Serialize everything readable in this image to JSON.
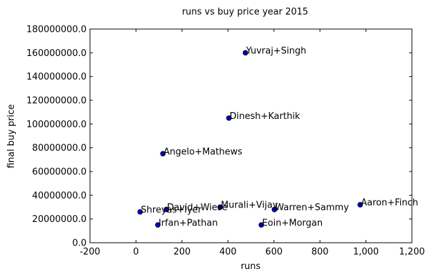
{
  "chart_data": {
    "type": "scatter",
    "title": "runs vs buy price year 2015",
    "xlabel": "runs",
    "ylabel": "final buy price",
    "xlim": [
      -200,
      1200
    ],
    "ylim": [
      0,
      180000000
    ],
    "xticks": [
      -200,
      0,
      200,
      400,
      600,
      800,
      1000,
      1200
    ],
    "xtick_labels": [
      "-200",
      "0",
      "200",
      "400",
      "600",
      "800",
      "1,000",
      "1,200"
    ],
    "yticks": [
      0,
      20000000,
      40000000,
      60000000,
      80000000,
      100000000,
      120000000,
      140000000,
      160000000,
      180000000
    ],
    "ytick_labels": [
      "0.0",
      "20000000.0",
      "40000000.0",
      "60000000.0",
      "80000000.0",
      "100000000.0",
      "120000000.0",
      "140000000.0",
      "160000000.0",
      "180000000.0"
    ],
    "grid": false,
    "marker_color": "#0000cc",
    "points": [
      {
        "label": "Yuvraj+Singh",
        "x": 476,
        "y": 160000000
      },
      {
        "label": "Dinesh+Karthik",
        "x": 404,
        "y": 105000000
      },
      {
        "label": "Angelo+Mathews",
        "x": 117,
        "y": 75000000
      },
      {
        "label": "Aaron+Finch",
        "x": 975,
        "y": 32000000
      },
      {
        "label": "Murali+Vijay",
        "x": 366,
        "y": 30000000
      },
      {
        "label": "Warren+Sammy",
        "x": 602,
        "y": 28000000
      },
      {
        "label": "David+Wiese",
        "x": 132,
        "y": 28000000
      },
      {
        "label": "Shreyas+Iyer",
        "x": 18,
        "y": 26000000
      },
      {
        "label": "Irfan+Pathan",
        "x": 95,
        "y": 15000000
      },
      {
        "label": "Eoin+Morgan",
        "x": 545,
        "y": 15000000
      }
    ]
  }
}
